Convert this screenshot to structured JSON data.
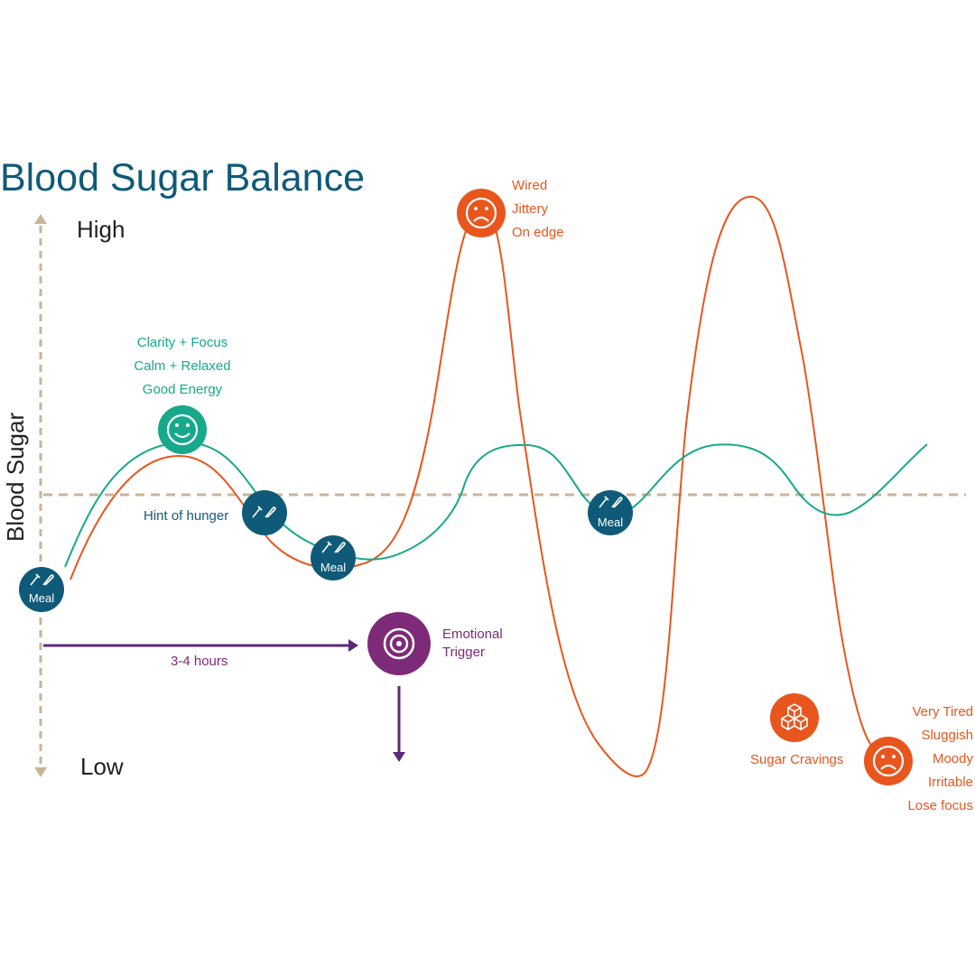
{
  "title": "Blood Sugar Balance",
  "axis": {
    "y_label": "Blood Sugar",
    "high": "High",
    "low": "Low"
  },
  "labels": {
    "meal": "Meal",
    "hint_of_hunger": "Hint of hunger",
    "duration": "3-4 hours",
    "emotional_trigger": [
      "Emotional",
      "Trigger"
    ],
    "sugar_cravings": "Sugar Cravings"
  },
  "balanced_states": [
    "Clarity + Focus",
    "Calm + Relaxed",
    "Good Energy"
  ],
  "spike_states": [
    "Wired",
    "Jittery",
    "On edge"
  ],
  "crash_states": [
    "Very Tired",
    "Sluggish",
    "Moody",
    "Irritable",
    "Lose focus"
  ],
  "colors": {
    "title": "#0f5a78",
    "balanced": "#16a98a",
    "unbalanced": "#e8561e",
    "meal": "#0f5a78",
    "trigger": "#7d2a78",
    "axis": "#c9b49a"
  },
  "icons": {
    "meal": "fork-knife-icon",
    "happy": "smiley-face-icon",
    "sad": "sad-face-icon",
    "trigger": "target-icon",
    "sugar": "sugar-cubes-icon"
  }
}
